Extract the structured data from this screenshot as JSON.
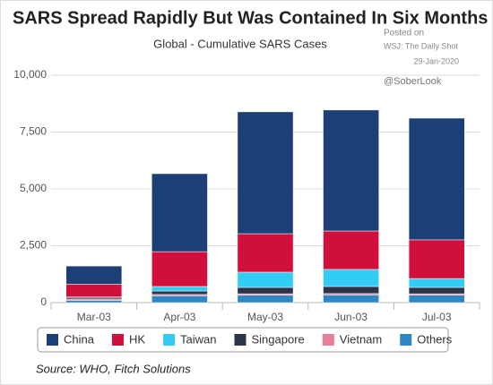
{
  "chart_data": {
    "type": "stacked_bar",
    "title": "SARS Spread Rapidly But Was Contained In Six Months",
    "subtitle": "Global - Cumulative SARS Cases",
    "annotations": [
      "Posted on",
      "WSJ: The Daily Shot",
      "29-Jan-2020",
      "@SoberLook"
    ],
    "source": "Source: WHO, Fitch Solutions",
    "categories": [
      "Mar-03",
      "Apr-03",
      "May-03",
      "Jun-03",
      "Jul-03"
    ],
    "series": [
      {
        "name": "Others",
        "color": "#2f86c4",
        "values": [
          100,
          300,
          330,
          340,
          330
        ]
      },
      {
        "name": "Vietnam",
        "color": "#e77f98",
        "values": [
          60,
          60,
          60,
          60,
          60
        ]
      },
      {
        "name": "Singapore",
        "color": "#2b3448",
        "values": [
          70,
          150,
          280,
          310,
          280
        ]
      },
      {
        "name": "Taiwan",
        "color": "#33ccf5",
        "values": [
          20,
          200,
          670,
          750,
          390
        ]
      },
      {
        "name": "HK",
        "color": "#d0103a",
        "values": [
          560,
          1530,
          1690,
          1690,
          1700
        ]
      },
      {
        "name": "China",
        "color": "#1c3f77",
        "values": [
          800,
          3430,
          5360,
          5320,
          5350
        ]
      }
    ],
    "legend_order": [
      "China",
      "HK",
      "Taiwan",
      "Singapore",
      "Vietnam",
      "Others"
    ],
    "ylim": [
      0,
      10000
    ],
    "yticks": [
      0,
      {
        "value": 2500,
        "label": "2,500"
      },
      {
        "value": 5000,
        "label": "5,000"
      },
      {
        "value": 7500,
        "label": "7,500"
      },
      {
        "value": 10000,
        "label": "10,000"
      }
    ],
    "grid": true
  }
}
